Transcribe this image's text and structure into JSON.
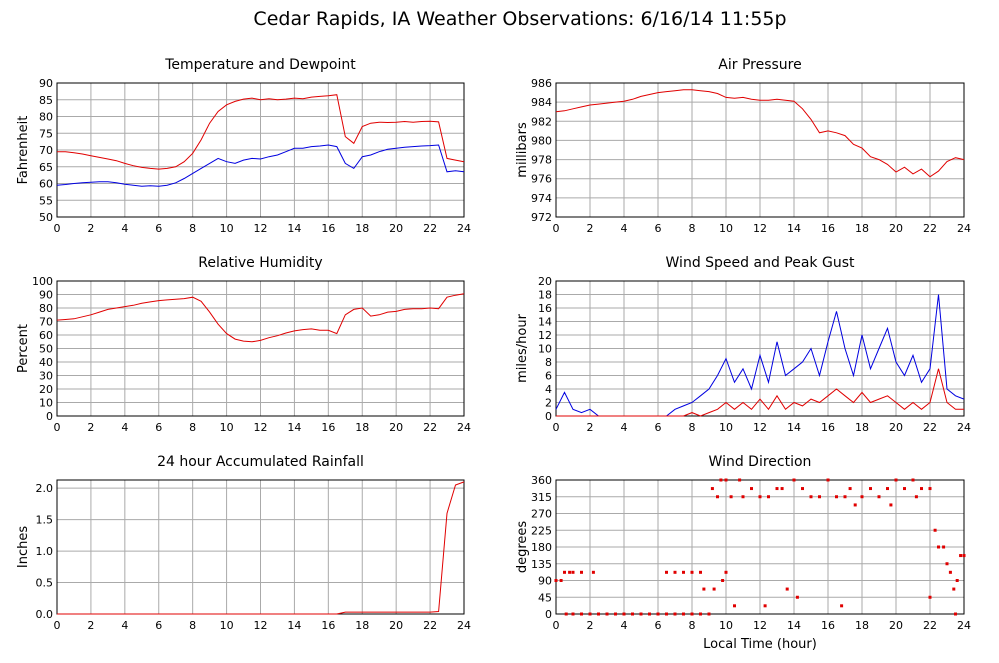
{
  "title": "Cedar Rapids, IA Weather Observations: 6/16/14 11:55p",
  "chart_data": [
    {
      "type": "line",
      "title": "Temperature and Dewpoint",
      "y_label": "Fahrenheit",
      "grid": true,
      "x": [
        0,
        0.5,
        1,
        1.5,
        2,
        2.5,
        3,
        3.5,
        4,
        4.5,
        5,
        5.5,
        6,
        6.5,
        7,
        7.5,
        8,
        8.5,
        9,
        9.5,
        10,
        10.5,
        11,
        11.5,
        12,
        12.5,
        13,
        13.5,
        14,
        14.5,
        15,
        15.5,
        16,
        16.5,
        17,
        17.5,
        18,
        18.5,
        19,
        19.5,
        20,
        20.5,
        21,
        21.5,
        22,
        22.5,
        23,
        23.5,
        24
      ],
      "xlim": [
        0,
        24
      ],
      "xticks": [
        0,
        2,
        4,
        6,
        8,
        10,
        12,
        14,
        16,
        18,
        20,
        22,
        24
      ],
      "ylim": [
        50,
        90
      ],
      "yticks": [
        50,
        55,
        60,
        65,
        70,
        75,
        80,
        85,
        90
      ],
      "series": [
        {
          "color": "#e00000",
          "values": [
            69.5,
            69.5,
            69.2,
            68.8,
            68.3,
            67.8,
            67.3,
            66.8,
            66,
            65.3,
            64.8,
            64.5,
            64.3,
            64.5,
            65,
            66.5,
            69,
            73,
            78,
            81.5,
            83.5,
            84.5,
            85.2,
            85.5,
            85,
            85.3,
            85,
            85.2,
            85.5,
            85.3,
            85.8,
            86,
            86.2,
            86.5,
            74,
            72,
            77,
            78,
            78.3,
            78.2,
            78.3,
            78.5,
            78.3,
            78.5,
            78.6,
            78.4,
            67.5,
            67,
            66.5
          ]
        },
        {
          "color": "#0000e0",
          "values": [
            59.5,
            59.7,
            60,
            60.2,
            60.4,
            60.5,
            60.5,
            60.2,
            59.8,
            59.5,
            59.2,
            59.3,
            59.2,
            59.5,
            60.2,
            61.5,
            63,
            64.5,
            66,
            67.5,
            66.5,
            66,
            67,
            67.5,
            67.3,
            68,
            68.5,
            69.5,
            70.5,
            70.5,
            71,
            71.2,
            71.5,
            71,
            66,
            64.5,
            68,
            68.5,
            69.5,
            70.2,
            70.5,
            70.8,
            71,
            71.2,
            71.3,
            71.5,
            63.5,
            63.8,
            63.5
          ]
        }
      ]
    },
    {
      "type": "line",
      "title": "Air Pressure",
      "y_label": "millibars",
      "grid": true,
      "x": [
        0,
        0.5,
        1,
        1.5,
        2,
        2.5,
        3,
        3.5,
        4,
        4.5,
        5,
        5.5,
        6,
        6.5,
        7,
        7.5,
        8,
        8.5,
        9,
        9.5,
        10,
        10.5,
        11,
        11.5,
        12,
        12.5,
        13,
        13.5,
        14,
        14.5,
        15,
        15.5,
        16,
        16.5,
        17,
        17.5,
        18,
        18.5,
        19,
        19.5,
        20,
        20.5,
        21,
        21.5,
        22,
        22.5,
        23,
        23.5,
        24
      ],
      "xlim": [
        0,
        24
      ],
      "xticks": [
        0,
        2,
        4,
        6,
        8,
        10,
        12,
        14,
        16,
        18,
        20,
        22,
        24
      ],
      "ylim": [
        972,
        986
      ],
      "yticks": [
        972,
        974,
        976,
        978,
        980,
        982,
        984,
        986
      ],
      "series": [
        {
          "color": "#e00000",
          "values": [
            983,
            983.1,
            983.3,
            983.5,
            983.7,
            983.8,
            983.9,
            984,
            984.1,
            984.3,
            984.6,
            984.8,
            985,
            985.1,
            985.2,
            985.3,
            985.3,
            985.2,
            985.1,
            984.9,
            984.5,
            984.4,
            984.5,
            984.3,
            984.2,
            984.2,
            984.3,
            984.2,
            984.1,
            983.3,
            982.2,
            980.8,
            981,
            980.8,
            980.5,
            979.6,
            979.2,
            978.3,
            978,
            977.5,
            976.7,
            977.2,
            976.5,
            977,
            976.2,
            976.8,
            977.8,
            978.2,
            978
          ]
        }
      ]
    },
    {
      "type": "line",
      "title": "Relative Humidity",
      "y_label": "Percent",
      "grid": true,
      "x": [
        0,
        0.5,
        1,
        1.5,
        2,
        2.5,
        3,
        3.5,
        4,
        4.5,
        5,
        5.5,
        6,
        6.5,
        7,
        7.5,
        8,
        8.5,
        9,
        9.5,
        10,
        10.5,
        11,
        11.5,
        12,
        12.5,
        13,
        13.5,
        14,
        14.5,
        15,
        15.5,
        16,
        16.5,
        17,
        17.5,
        18,
        18.5,
        19,
        19.5,
        20,
        20.5,
        21,
        21.5,
        22,
        22.5,
        23,
        23.5,
        24
      ],
      "xlim": [
        0,
        24
      ],
      "xticks": [
        0,
        2,
        4,
        6,
        8,
        10,
        12,
        14,
        16,
        18,
        20,
        22,
        24
      ],
      "ylim": [
        0,
        100
      ],
      "yticks": [
        0,
        10,
        20,
        30,
        40,
        50,
        60,
        70,
        80,
        90,
        100
      ],
      "series": [
        {
          "color": "#e00000",
          "values": [
            71,
            71.5,
            72,
            73.5,
            75,
            77,
            79,
            80,
            81,
            82,
            83.5,
            84.5,
            85.5,
            86,
            86.5,
            87,
            88,
            85,
            77,
            68,
            61,
            57,
            55.5,
            55,
            56,
            58,
            59.5,
            61.5,
            63,
            64,
            64.5,
            63.5,
            63.5,
            61,
            75,
            79,
            80,
            74,
            75,
            77,
            77.5,
            79,
            79.5,
            79.5,
            80,
            79.5,
            88,
            89.5,
            90.5
          ]
        }
      ]
    },
    {
      "type": "line",
      "title": "Wind Speed and Peak Gust",
      "y_label": "miles/hour",
      "grid": true,
      "x": [
        0,
        0.5,
        1,
        1.5,
        2,
        2.5,
        3,
        3.5,
        4,
        4.5,
        5,
        5.5,
        6,
        6.5,
        7,
        7.5,
        8,
        8.5,
        9,
        9.5,
        10,
        10.5,
        11,
        11.5,
        12,
        12.5,
        13,
        13.5,
        14,
        14.5,
        15,
        15.5,
        16,
        16.5,
        17,
        17.5,
        18,
        18.5,
        19,
        19.5,
        20,
        20.5,
        21,
        21.5,
        22,
        22.5,
        23,
        23.5,
        24
      ],
      "xlim": [
        0,
        24
      ],
      "xticks": [
        0,
        2,
        4,
        6,
        8,
        10,
        12,
        14,
        16,
        18,
        20,
        22,
        24
      ],
      "ylim": [
        0,
        20
      ],
      "yticks": [
        0,
        2,
        4,
        6,
        8,
        10,
        12,
        14,
        16,
        18,
        20
      ],
      "series": [
        {
          "color": "#0000e0",
          "values": [
            1,
            3.5,
            1,
            0.5,
            1,
            0,
            0,
            0,
            0,
            0,
            0,
            0,
            0,
            0,
            1,
            1.5,
            2,
            3,
            4,
            6,
            8.5,
            5,
            7,
            4,
            9,
            5,
            11,
            6,
            7,
            8,
            10,
            6,
            11,
            15.5,
            10,
            6,
            12,
            7,
            10,
            13,
            8,
            6,
            9,
            5,
            7,
            18,
            4,
            3,
            2.5
          ]
        },
        {
          "color": "#e00000",
          "values": [
            0,
            0,
            0,
            0,
            0,
            0,
            0,
            0,
            0,
            0,
            0,
            0,
            0,
            0,
            0,
            0,
            0.5,
            0,
            0.5,
            1,
            2,
            1,
            2,
            1,
            2.5,
            1,
            3,
            1,
            2,
            1.5,
            2.5,
            2,
            3,
            4,
            3,
            2,
            3.5,
            2,
            2.5,
            3,
            2,
            1,
            2,
            1,
            2,
            7,
            2,
            1,
            1
          ]
        }
      ]
    },
    {
      "type": "line",
      "title": "24 hour Accumulated Rainfall",
      "y_label": "Inches",
      "grid": true,
      "x": [
        0,
        0.5,
        1,
        1.5,
        2,
        2.5,
        3,
        3.5,
        4,
        4.5,
        5,
        5.5,
        6,
        6.5,
        7,
        7.5,
        8,
        8.5,
        9,
        9.5,
        10,
        10.5,
        11,
        11.5,
        12,
        12.5,
        13,
        13.5,
        14,
        14.5,
        15,
        15.5,
        16,
        16.5,
        17,
        17.5,
        18,
        18.5,
        19,
        19.5,
        20,
        20.5,
        21,
        21.5,
        22,
        22.5,
        23,
        23.5,
        24
      ],
      "xlim": [
        0,
        24
      ],
      "xticks": [
        0,
        2,
        4,
        6,
        8,
        10,
        12,
        14,
        16,
        18,
        20,
        22,
        24
      ],
      "ylim": [
        0,
        2.13
      ],
      "yticks": [
        {
          "value": 0,
          "label": "0.0"
        },
        0.5,
        {
          "value": 1,
          "label": "1.0"
        },
        1.5,
        {
          "value": 2,
          "label": "2.0"
        }
      ],
      "series": [
        {
          "color": "#e00000",
          "values": [
            0,
            0,
            0,
            0,
            0,
            0,
            0,
            0,
            0,
            0,
            0,
            0,
            0,
            0,
            0,
            0,
            0,
            0,
            0,
            0,
            0,
            0,
            0,
            0,
            0,
            0,
            0,
            0,
            0,
            0,
            0,
            0,
            0,
            0,
            0.03,
            0.03,
            0.03,
            0.03,
            0.03,
            0.03,
            0.03,
            0.03,
            0.03,
            0.03,
            0.03,
            0.04,
            1.6,
            2.05,
            2.1
          ]
        }
      ]
    },
    {
      "type": "scatter",
      "title": "Wind Direction",
      "y_label": "degrees",
      "x_label": "Local Time (hour)",
      "grid": true,
      "x": [
        0,
        0.3,
        0.5,
        0.8,
        1,
        1.5,
        2.2,
        0.6,
        1,
        1.5,
        2,
        2.5,
        3,
        3.5,
        4,
        4.5,
        5,
        5.5,
        6,
        6.5,
        7,
        7,
        7.5,
        8,
        8.5,
        7.5,
        8,
        8.5,
        9,
        6.5,
        8.7,
        9.3,
        9.2,
        9.5,
        9.7,
        10,
        10.3,
        10.5,
        10.8,
        11,
        11.5,
        12,
        12.3,
        12.5,
        13,
        13.3,
        13.6,
        14,
        14.2,
        14.5,
        15,
        15.5,
        16,
        16.5,
        16.8,
        17,
        17.3,
        17.6,
        18,
        18.5,
        19,
        19.5,
        19.7,
        20,
        20.5,
        21,
        21.2,
        21.5,
        22,
        22,
        22.3,
        22.5,
        22.8,
        23,
        23.2,
        23.4,
        23.6,
        23.8,
        24,
        10,
        9.8,
        23.5
      ],
      "xlim": [
        0,
        24
      ],
      "xticks": [
        0,
        2,
        4,
        6,
        8,
        10,
        12,
        14,
        16,
        18,
        20,
        22,
        24
      ],
      "ylim": [
        0,
        360
      ],
      "yticks": [
        0,
        45,
        90,
        135,
        180,
        225,
        270,
        315,
        360
      ],
      "series": [
        {
          "color": "#e00000",
          "values": [
            90,
            90,
            112,
            112,
            112,
            112,
            112,
            0,
            0,
            0,
            0,
            0,
            0,
            0,
            0,
            0,
            0,
            0,
            0,
            0,
            0,
            112,
            112,
            112,
            112,
            0,
            0,
            0,
            0,
            112,
            67,
            67,
            337,
            315,
            360,
            360,
            315,
            22,
            360,
            315,
            337,
            315,
            22,
            315,
            337,
            337,
            67,
            360,
            45,
            337,
            315,
            315,
            360,
            315,
            22,
            315,
            337,
            293,
            315,
            337,
            315,
            337,
            293,
            360,
            337,
            360,
            315,
            337,
            337,
            45,
            225,
            180,
            180,
            135,
            112,
            67,
            90,
            157,
            157,
            112,
            90,
            0
          ]
        }
      ]
    }
  ]
}
